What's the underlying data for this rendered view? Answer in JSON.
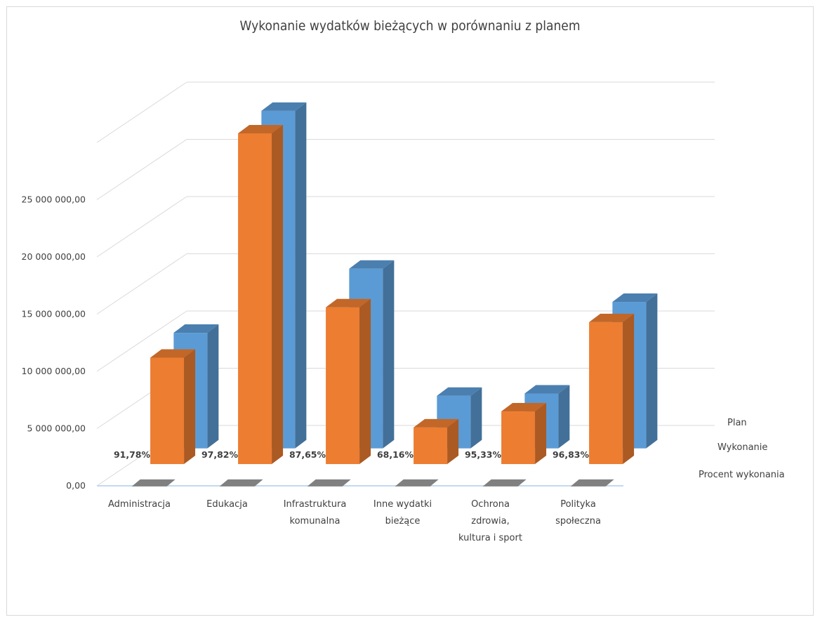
{
  "chart_data": {
    "type": "bar",
    "title": "Wykonanie wydatków bieżących w porównaniu z planem",
    "categories": [
      "Administracja",
      "Edukacja",
      "Infrastruktura komunalna",
      "Inne wydatki bieżące",
      "Ochrona zdrowia, kultura i sport",
      "Polityka społeczna"
    ],
    "category_lines": [
      [
        "Administracja"
      ],
      [
        "Edukacja"
      ],
      [
        "Infrastruktura",
        "komunalna"
      ],
      [
        "Inne wydatki",
        "bieżące"
      ],
      [
        "Ochrona",
        "zdrowia,",
        "kultura i sport"
      ],
      [
        "Polityka",
        "społeczna"
      ]
    ],
    "series": [
      {
        "name": "Plan",
        "values": [
          10100000,
          29500000,
          15700000,
          4600000,
          4800000,
          12800000
        ],
        "color": "#5b9bd5"
      },
      {
        "name": "Wykonanie",
        "values": [
          9300000,
          28900000,
          13700000,
          3200000,
          4600000,
          12400000
        ],
        "color": "#ed7d31"
      },
      {
        "name": "Procent wykonania",
        "values": [
          91.78,
          97.82,
          87.65,
          68.16,
          95.33,
          96.83
        ],
        "color": "#808080"
      }
    ],
    "percent_labels": [
      "91,78%",
      "97,82%",
      "87,65%",
      "68,16%",
      "95,33%",
      "96,83%"
    ],
    "y_ticks": [
      "0,00",
      "5 000 000,00",
      "10 000 000,00",
      "15 000 000,00",
      "20 000 000,00",
      "25 000 000,00"
    ],
    "y_tick_values": [
      0,
      5000000,
      10000000,
      15000000,
      20000000,
      25000000
    ],
    "ylim": [
      0,
      30000000
    ],
    "depth_labels": [
      "Plan",
      "Wykonanie",
      "Procent wykonania"
    ],
    "grid": true
  }
}
